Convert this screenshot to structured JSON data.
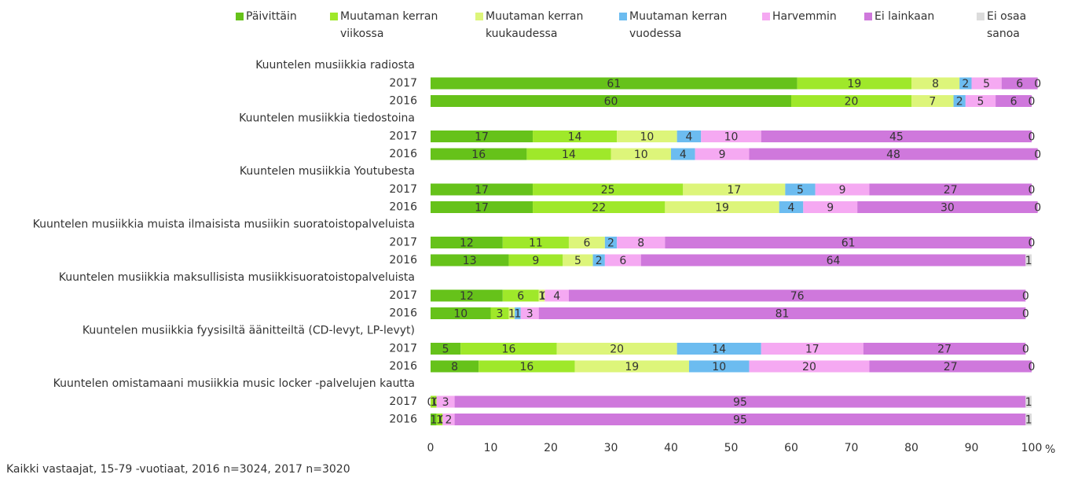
{
  "chart_data": {
    "type": "stacked-bar-horizontal",
    "groups": [
      "Kuuntelen musiikkia radiosta",
      "Kuuntelen musiikkia tiedostoina",
      "Kuuntelen musiikkia Youtubesta",
      "Kuuntelen musiikkia muista ilmaisista musiikin suoratoistopalveluista",
      "Kuuntelen musiikkia maksullisista musiikkisuoratoistopalveluista",
      "Kuuntelen musiikkia fyysisiltä äänitteiltä (CD-levyt, LP-levyt)",
      "Kuuntelen omistamaani musiikkia music locker -palvelujen kautta"
    ],
    "categories": [
      "2017",
      "2016",
      "2017",
      "2016",
      "2017",
      "2016",
      "2017",
      "2016",
      "2017",
      "2016",
      "2017",
      "2016",
      "2017",
      "2016"
    ],
    "series": [
      {
        "name": "Päivittäin",
        "color": "#66c21a",
        "values": [
          61,
          60,
          17,
          16,
          17,
          17,
          12,
          13,
          12,
          10,
          5,
          8,
          0,
          1
        ]
      },
      {
        "name": "Muutaman kerran viikossa",
        "color": "#9fe82a",
        "values": [
          19,
          20,
          14,
          14,
          25,
          22,
          11,
          9,
          6,
          3,
          16,
          16,
          1,
          1
        ]
      },
      {
        "name": "Muutaman kerran kuukaudessa",
        "color": "#ddf57a",
        "values": [
          8,
          7,
          10,
          10,
          17,
          19,
          6,
          5,
          1,
          1,
          20,
          19,
          0,
          0
        ]
      },
      {
        "name": "Muutaman kerran vuodessa",
        "color": "#6cbcf0",
        "values": [
          2,
          2,
          4,
          4,
          5,
          4,
          2,
          2,
          0,
          1,
          14,
          10,
          0,
          0
        ]
      },
      {
        "name": "Harvemmin",
        "color": "#f5a9f2",
        "values": [
          5,
          5,
          10,
          9,
          9,
          9,
          8,
          6,
          4,
          3,
          17,
          20,
          3,
          2
        ]
      },
      {
        "name": "Ei lainkaan",
        "color": "#cf78dc",
        "values": [
          6,
          6,
          45,
          48,
          27,
          30,
          61,
          64,
          76,
          81,
          27,
          27,
          95,
          95
        ]
      },
      {
        "name": "Ei osaa sanoa",
        "color": "#dcdcdc",
        "values": [
          0,
          0,
          0,
          0,
          0,
          0,
          0,
          1,
          0,
          0,
          0,
          0,
          1,
          1
        ]
      }
    ],
    "xlim": [
      0,
      100
    ],
    "xticks": [
      0,
      10,
      20,
      30,
      40,
      50,
      60,
      70,
      80,
      90,
      100
    ],
    "xlabel": "%",
    "note": "Kaikki vastaajat, 15-79 -vuotiaat, 2016 n=3024, 2017 n=3020",
    "legend": "top"
  }
}
